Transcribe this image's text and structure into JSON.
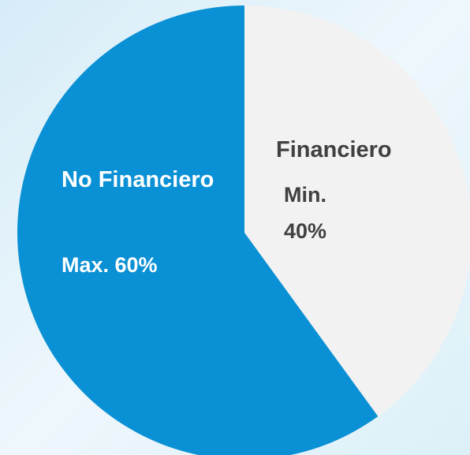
{
  "chart_data": {
    "type": "pie",
    "categories": [
      "Financiero",
      "No Financiero"
    ],
    "values": [
      40,
      60
    ],
    "value_labels": [
      "Min. 40%",
      "Max. 60%"
    ],
    "colors": [
      "#f2f2f2",
      "#0a90d4"
    ]
  }
}
